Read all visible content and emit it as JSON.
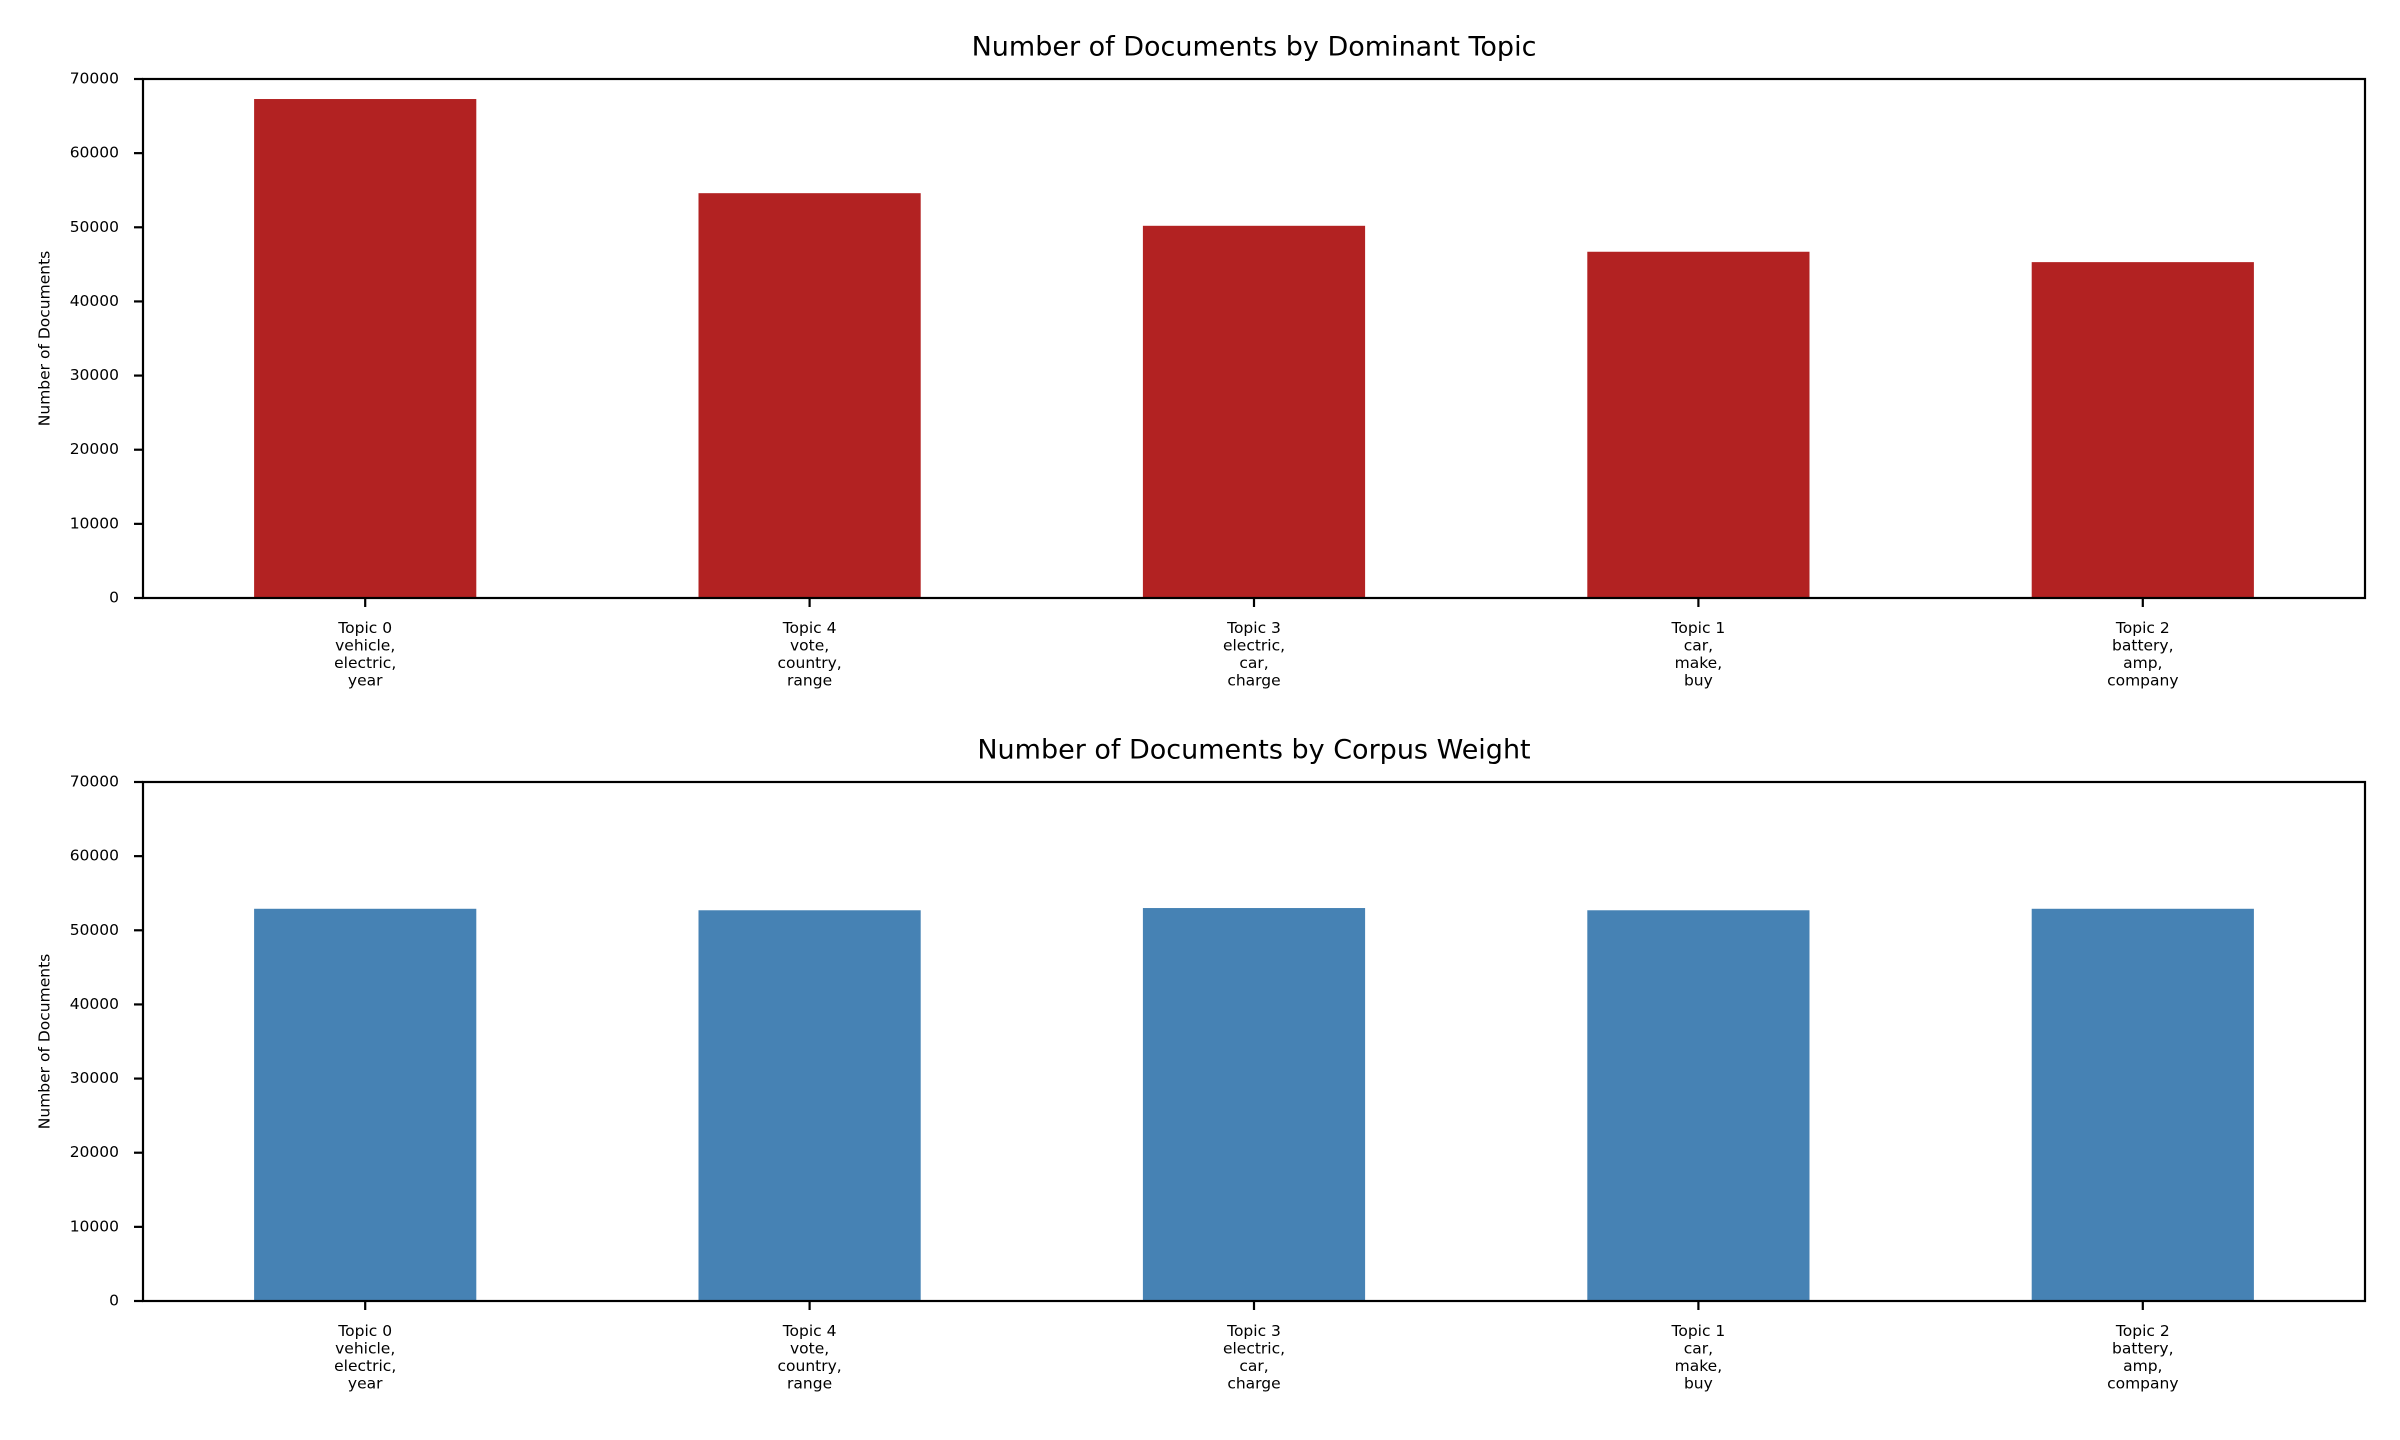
{
  "chart_data": [
    {
      "type": "bar",
      "title": "Number of Documents by Dominant Topic",
      "xlabel": "",
      "ylabel": "Number of Documents",
      "ylim": [
        0,
        70000
      ],
      "yticks": [
        "0",
        "10000",
        "20000",
        "30000",
        "40000",
        "50000",
        "60000",
        "70000"
      ],
      "grid": false,
      "color": "#b22222",
      "categories": [
        [
          "Topic 0",
          "vehicle,",
          "electric,",
          "year"
        ],
        [
          "Topic 4",
          "vote,",
          "country,",
          "range"
        ],
        [
          "Topic 3",
          "electric,",
          "car,",
          "charge"
        ],
        [
          "Topic 1",
          "car,",
          "make,",
          "buy"
        ],
        [
          "Topic 2",
          "battery,",
          "amp,",
          "company"
        ]
      ],
      "values": [
        67300,
        54600,
        50200,
        46700,
        45300
      ]
    },
    {
      "type": "bar",
      "title": "Number of Documents by Corpus Weight",
      "xlabel": "",
      "ylabel": "Number of Documents",
      "ylim": [
        0,
        70000
      ],
      "yticks": [
        "0",
        "10000",
        "20000",
        "30000",
        "40000",
        "50000",
        "60000",
        "70000"
      ],
      "grid": false,
      "color": "#4682b4",
      "categories": [
        [
          "Topic 0",
          "vehicle,",
          "electric,",
          "year"
        ],
        [
          "Topic 4",
          "vote,",
          "country,",
          "range"
        ],
        [
          "Topic 3",
          "electric,",
          "car,",
          "charge"
        ],
        [
          "Topic 1",
          "car,",
          "make,",
          "buy"
        ],
        [
          "Topic 2",
          "battery,",
          "amp,",
          "company"
        ]
      ],
      "values": [
        52900,
        52700,
        53000,
        52700,
        52900
      ]
    }
  ]
}
